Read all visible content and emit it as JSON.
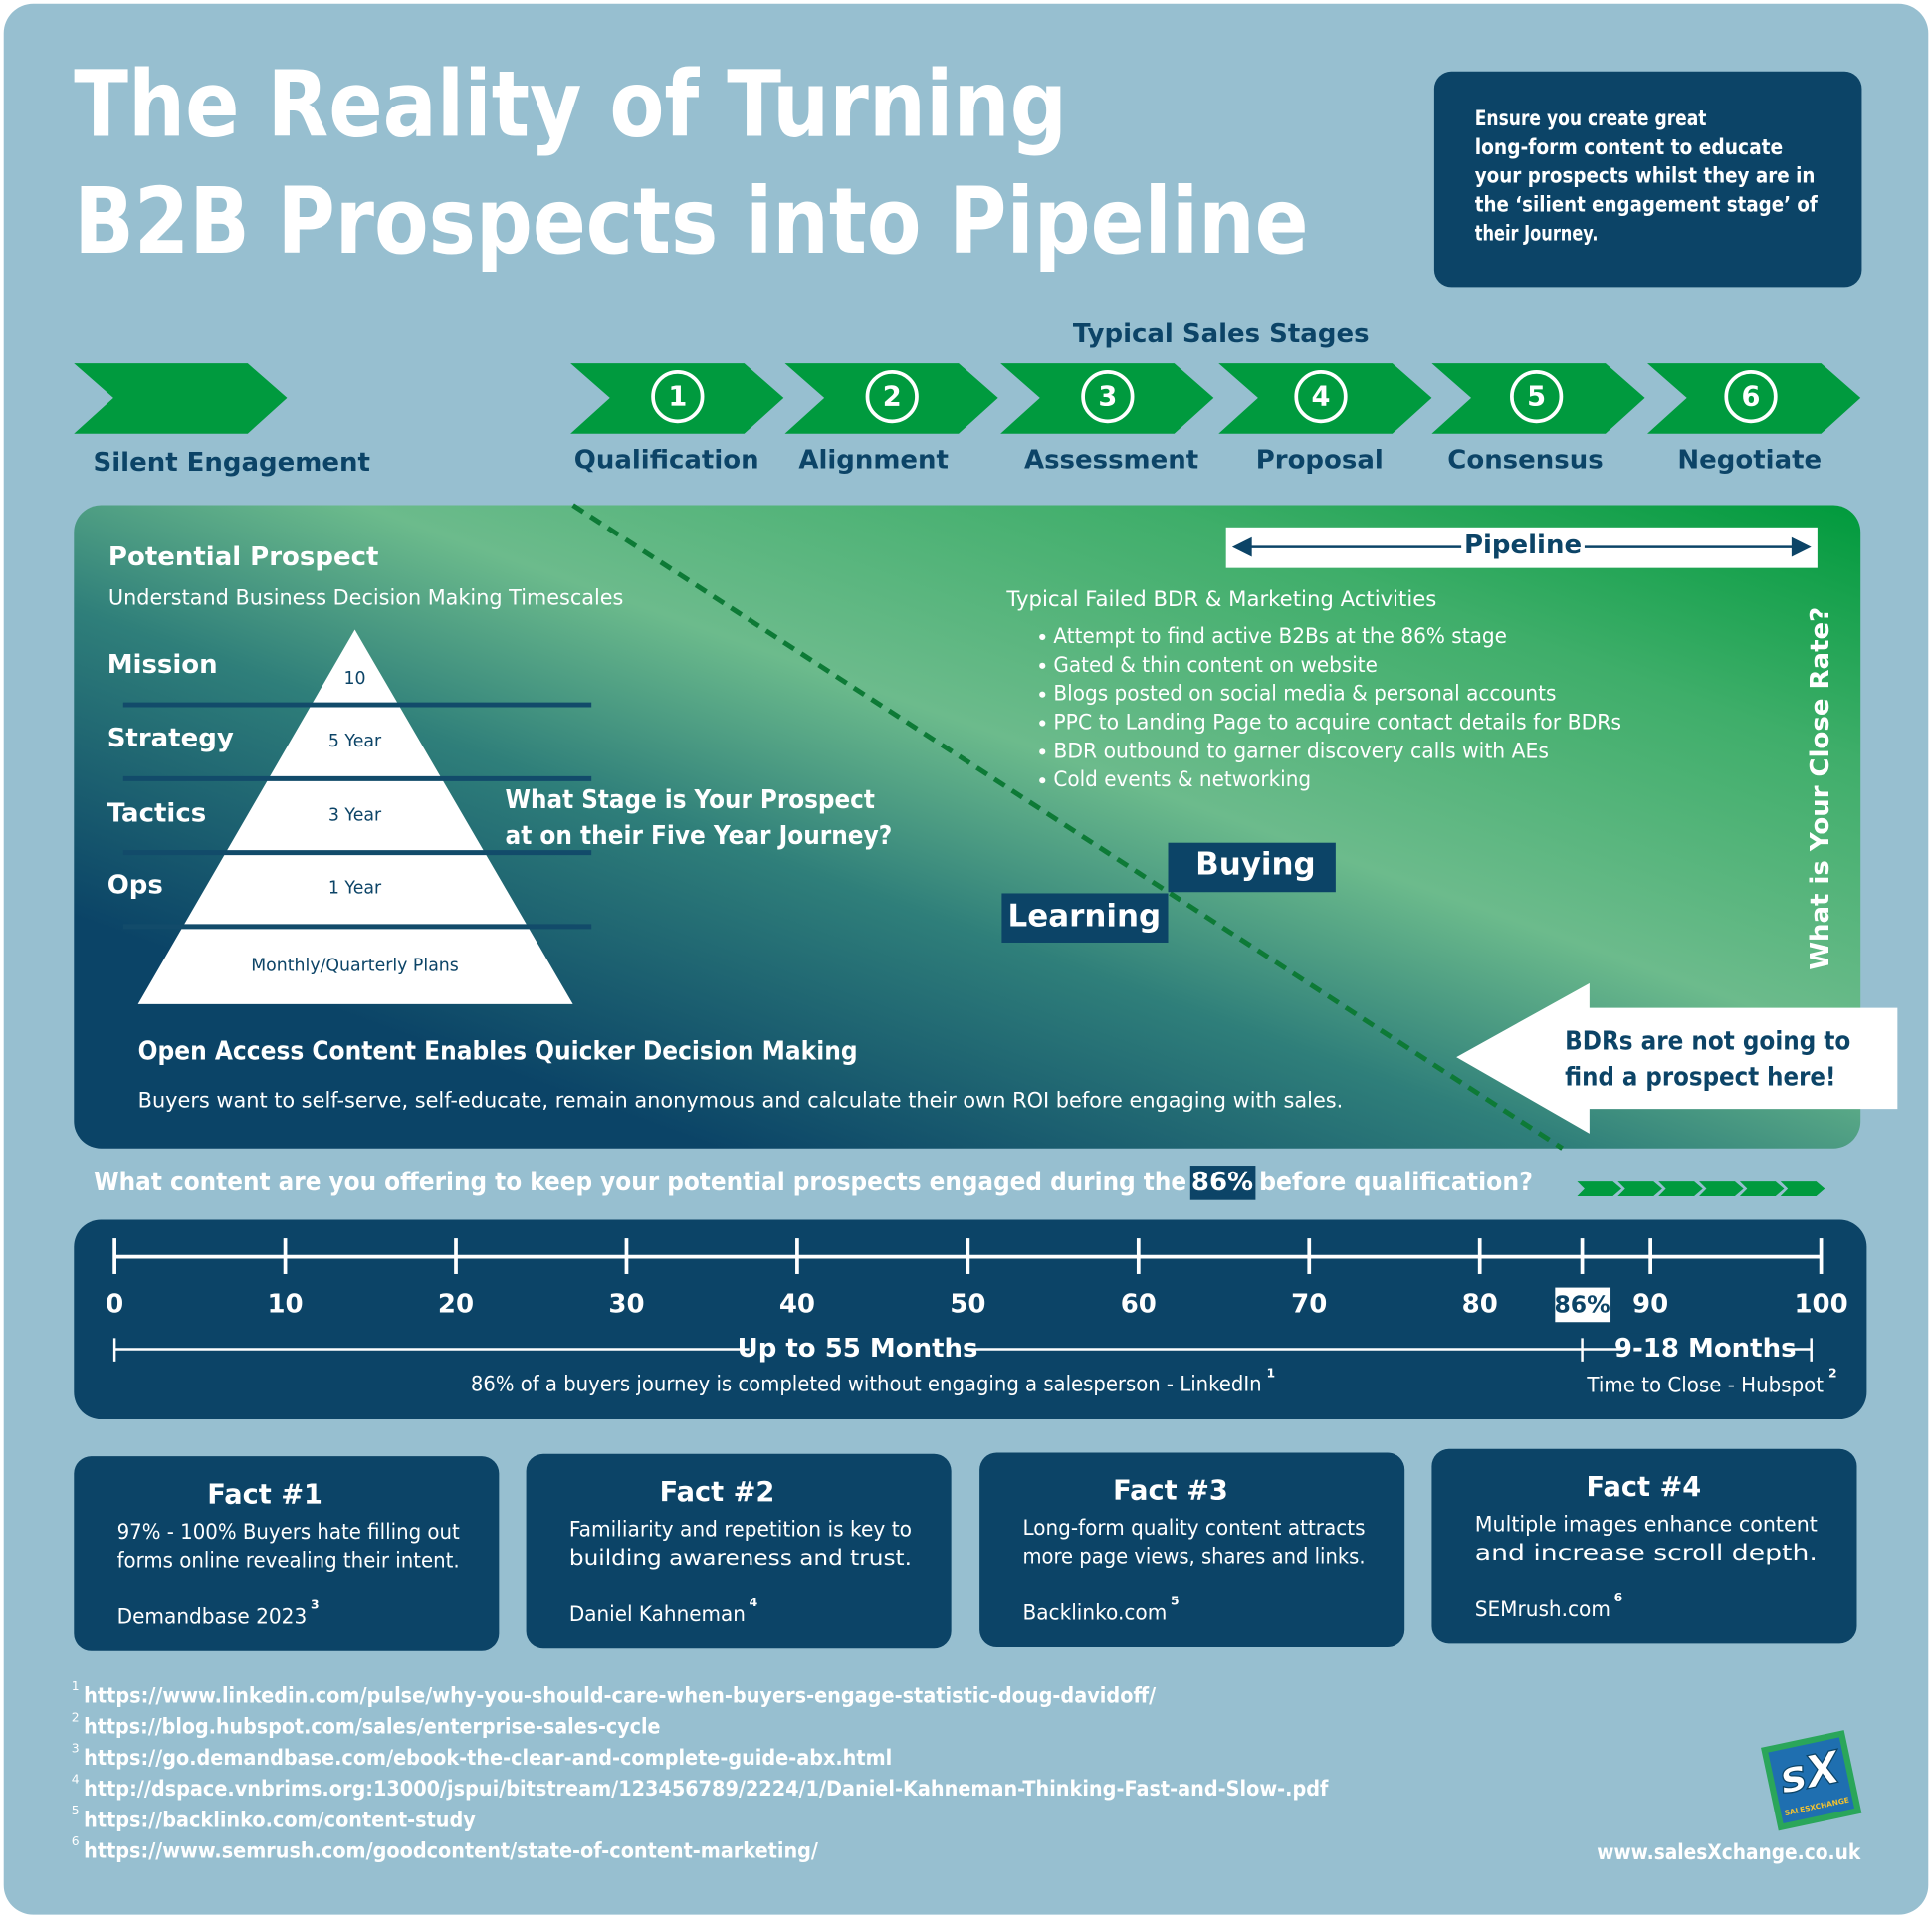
{
  "header": {
    "title_lines": [
      "The Reality of Turning",
      "B2B Prospects into Pipeline"
    ],
    "callout_lines": [
      "Ensure you create great",
      "long-form content to educate",
      "your prospects whilst they are in",
      "the ‘silient engagement stage’ of",
      "their Journey."
    ]
  },
  "stages": {
    "heading": "Typical Sales Stages",
    "silent": "Silent Engagement",
    "items": [
      {
        "number": 1,
        "label": "Qualification"
      },
      {
        "number": 2,
        "label": "Alignment"
      },
      {
        "number": 3,
        "label": "Assessment"
      },
      {
        "number": 4,
        "label": "Proposal"
      },
      {
        "number": 5,
        "label": "Consensus"
      },
      {
        "number": 6,
        "label": "Negotiate"
      }
    ]
  },
  "panel": {
    "prospect_title": "Potential  Prospect",
    "prospect_subtitle": "Understand Business Decision Making Timescales",
    "pyramid": [
      {
        "level": "Mission",
        "horizon": "10"
      },
      {
        "level": "Strategy",
        "horizon": "5 Year"
      },
      {
        "level": "Tactics",
        "horizon": "3 Year"
      },
      {
        "level": "Ops",
        "horizon": "1 Year"
      }
    ],
    "pyramid_base": "Monthly/Quarterly Plans",
    "question_lines": [
      "What Stage is Your Prospect",
      "at on their Five Year Journey?"
    ],
    "open_title": "Open Access Content Enables Quicker Decision Making",
    "open_text": "Buyers want to self-serve, self-educate, remain anonymous and calculate their own ROI before engaging with sales.",
    "pipeline": "Pipeline",
    "activities_title": "Typical Failed BDR & Marketing Activities",
    "activities": [
      "Attempt to find active B2Bs at the 86% stage",
      "Gated & thin content on website",
      "Blogs posted on social media & personal accounts",
      "PPC to Landing Page to acquire contact details for BDRs",
      "BDR outbound to garner discovery calls with AEs",
      "Cold events & networking"
    ],
    "learning": "Learning",
    "buying": "Buying",
    "close_rate": "What is Your Close Rate?",
    "bdr_lines": [
      "BDRs are not going to",
      "find a prospect here!"
    ]
  },
  "question": {
    "before": "What content are you offering to keep your potential prospects engaged during the",
    "highlight": "86%",
    "after": "before qualification?"
  },
  "timeline": {
    "xlim": [
      0,
      100
    ],
    "xticks": [
      0,
      10,
      20,
      30,
      40,
      50,
      60,
      70,
      80,
      90,
      100
    ],
    "marker": {
      "value": 86,
      "label": "86%"
    },
    "left_span": "Up to 55 Months",
    "left_caption": "86% of a buyers journey is completed without engaging a salesperson - LinkedIn",
    "left_ref": "1",
    "right_span": "9-18 Months",
    "right_caption": "Time to Close - Hubspot",
    "right_ref": "2"
  },
  "facts": [
    {
      "title": "Fact #1",
      "lines": [
        "97% - 100% Buyers hate filling out",
        "forms online revealing their intent."
      ],
      "source": "Demandbase 2023",
      "ref": "3"
    },
    {
      "title": "Fact #2",
      "lines": [
        "Familiarity and repetition is key to",
        "building awareness and trust."
      ],
      "source": "Daniel Kahneman",
      "ref": "4"
    },
    {
      "title": "Fact #3",
      "lines": [
        "Long-form quality content attracts",
        "more page views, shares and links."
      ],
      "source": "Backlinko.com",
      "ref": "5"
    },
    {
      "title": "Fact #4",
      "lines": [
        "Multiple images enhance content",
        "and increase scroll depth."
      ],
      "source": "SEMrush.com",
      "ref": "6"
    }
  ],
  "footnotes": [
    {
      "ref": "1",
      "url": "https://www.linkedin.com/pulse/why-you-should-care-when-buyers-engage-statistic-doug-davidoff/"
    },
    {
      "ref": "2",
      "url": "https://blog.hubspot.com/sales/enterprise-sales-cycle"
    },
    {
      "ref": "3",
      "url": "https://go.demandbase.com/ebook-the-clear-and-complete-guide-abx.html"
    },
    {
      "ref": "4",
      "url": "http://dspace.vnbrims.org:13000/jspui/bitstream/123456789/2224/1/Daniel-Kahneman-Thinking-Fast-and-Slow-.pdf"
    },
    {
      "ref": "5",
      "url": "https://backlinko.com/content-study"
    },
    {
      "ref": "6",
      "url": "https://www.semrush.com/goodcontent/state-of-content-marketing/"
    }
  ],
  "footer": {
    "logo": "sX",
    "logo_caption": "SALESXCHANGE",
    "website": "www.salesXchange.co.uk"
  }
}
